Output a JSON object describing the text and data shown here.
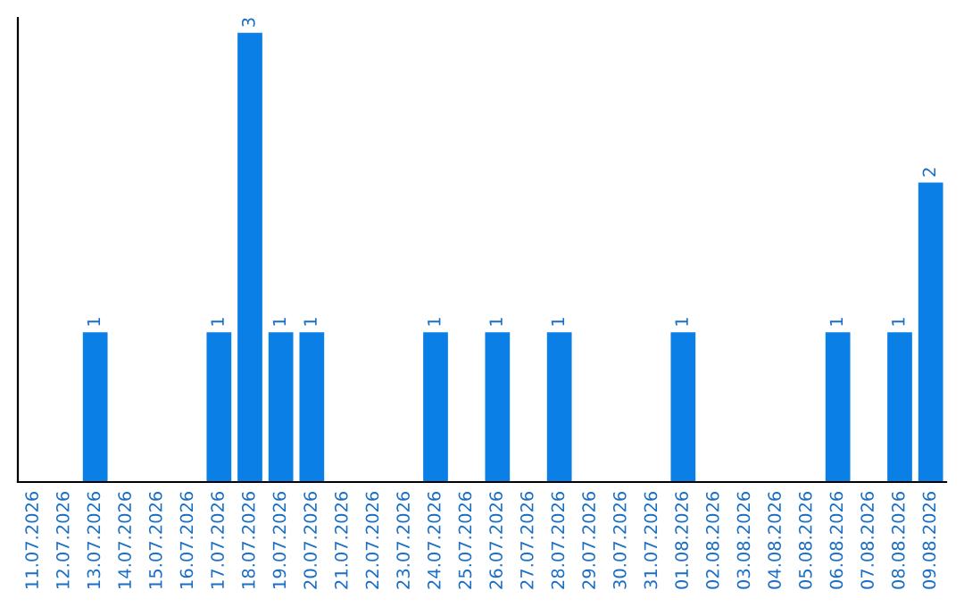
{
  "chart_data": {
    "type": "bar",
    "categories": [
      "11.07.2026",
      "12.07.2026",
      "13.07.2026",
      "14.07.2026",
      "15.07.2026",
      "16.07.2026",
      "17.07.2026",
      "18.07.2026",
      "19.07.2026",
      "20.07.2026",
      "21.07.2026",
      "22.07.2026",
      "23.07.2026",
      "24.07.2026",
      "25.07.2026",
      "26.07.2026",
      "27.07.2026",
      "28.07.2026",
      "29.07.2026",
      "30.07.2026",
      "31.07.2026",
      "01.08.2026",
      "02.08.2026",
      "03.08.2026",
      "04.08.2026",
      "05.08.2026",
      "06.08.2026",
      "07.08.2026",
      "08.08.2026",
      "09.08.2026"
    ],
    "values": [
      0,
      0,
      1,
      0,
      0,
      0,
      1,
      3,
      1,
      1,
      0,
      0,
      0,
      1,
      0,
      1,
      0,
      1,
      0,
      0,
      0,
      1,
      0,
      0,
      0,
      0,
      1,
      0,
      1,
      2
    ],
    "value_labels": [
      null,
      null,
      "1",
      null,
      null,
      null,
      "1",
      "3",
      "1",
      "1",
      null,
      null,
      null,
      "1",
      null,
      "1",
      null,
      "1",
      null,
      null,
      null,
      "1",
      null,
      null,
      null,
      null,
      "1",
      null,
      "1",
      "2"
    ],
    "color": "#0a7fe6",
    "ylim": [
      0,
      3.1
    ],
    "tick_labels": "x",
    "grid": false
  }
}
